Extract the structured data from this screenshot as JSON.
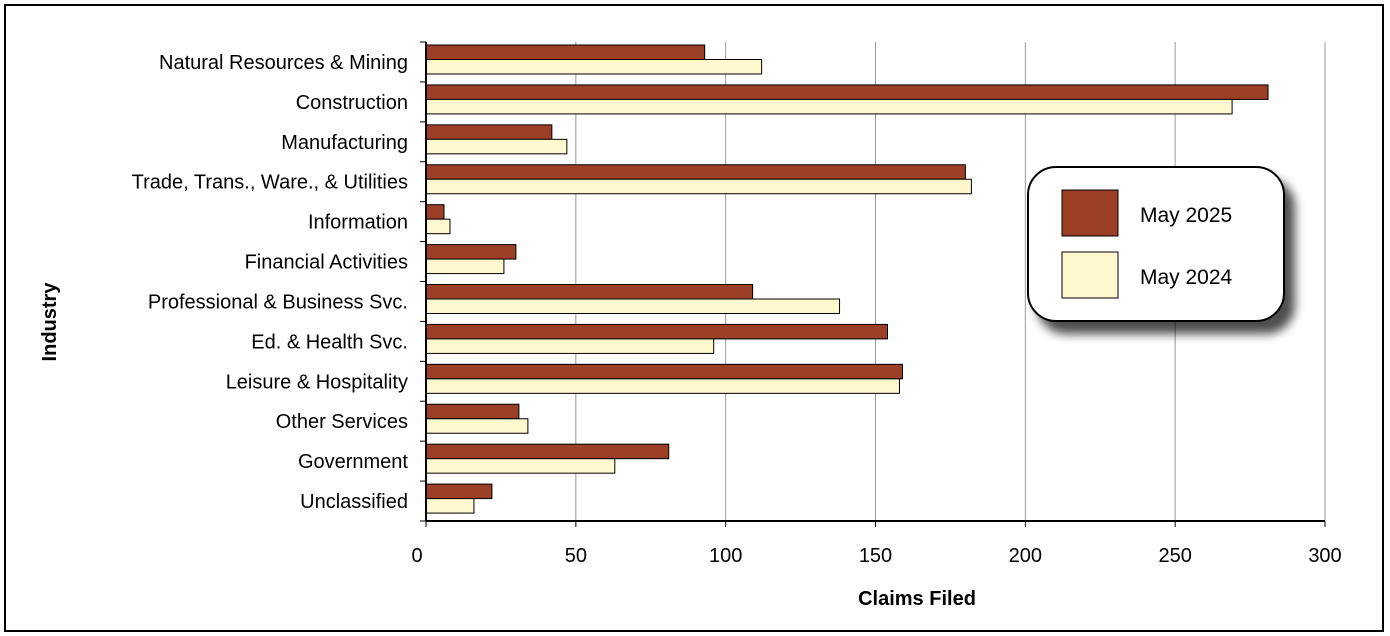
{
  "colors": {
    "series1": "#9B3F27",
    "series2": "#FFF8CF",
    "grid": "#999999",
    "axis": "#000000"
  },
  "chart_data": {
    "type": "bar",
    "orientation": "horizontal",
    "title": "",
    "xlabel": "Claims Filed",
    "ylabel": "Industry",
    "xlim": [
      0,
      300
    ],
    "xticks": [
      0,
      50,
      100,
      150,
      200,
      250,
      300
    ],
    "grid": "vertical",
    "legend_position": "right",
    "categories": [
      "Natural Resources & Mining",
      "Construction",
      "Manufacturing",
      "Trade, Trans., Ware., & Utilities",
      "Information",
      "Financial Activities",
      "Professional & Business Svc.",
      "Ed. & Health Svc.",
      "Leisure & Hospitality",
      "Other Services",
      "Government",
      "Unclassified"
    ],
    "series": [
      {
        "name": "May 2025",
        "values": [
          93,
          281,
          42,
          180,
          6,
          30,
          109,
          154,
          159,
          31,
          81,
          22
        ]
      },
      {
        "name": "May 2024",
        "values": [
          112,
          269,
          47,
          182,
          8,
          26,
          138,
          96,
          158,
          34,
          63,
          16
        ]
      }
    ]
  }
}
